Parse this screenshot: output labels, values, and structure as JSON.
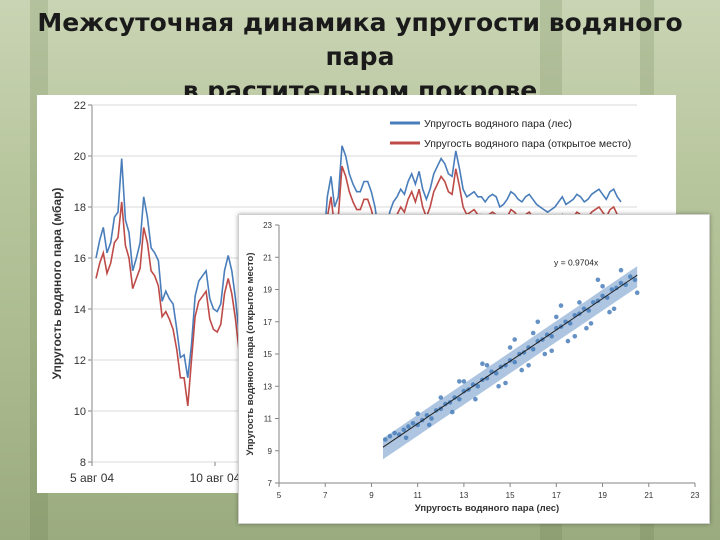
{
  "title_line1": "Межсуточная динамика упругости водяного пара",
  "title_line2": "в растительном покрове",
  "chart_data": [
    {
      "type": "line",
      "ylabel": "Упругость водяного пара (мбар)",
      "xlabel": "",
      "ylim": [
        8,
        22
      ],
      "yticks": [
        8,
        10,
        12,
        14,
        16,
        18,
        20,
        22
      ],
      "xticks": [
        "5 авг 04",
        "10 авг 04"
      ],
      "legend_position": "top-right",
      "grid": true,
      "colors": {
        "forest": "#4a7ebb",
        "open": "#be4b48"
      },
      "series": [
        {
          "name": "Упругость водяного пара (лес)",
          "values": [
            16.0,
            16.7,
            17.2,
            16.2,
            16.6,
            17.6,
            17.8,
            19.9,
            17.5,
            17.0,
            15.5,
            16.0,
            16.6,
            18.4,
            17.6,
            16.4,
            16.2,
            15.9,
            14.3,
            14.7,
            14.4,
            14.2,
            13.2,
            12.1,
            12.2,
            11.3,
            12.6,
            14.5,
            15.1,
            15.3,
            15.5,
            14.4,
            14.0,
            13.9,
            14.2,
            15.5,
            16.1,
            15.5,
            14.4,
            13.0,
            12.5,
            13.2,
            13.0,
            12.5,
            12.0,
            13.3,
            14.4,
            14.3,
            13.7,
            13.4,
            12.8,
            11.9,
            13.2,
            14.0,
            14.0,
            14.7,
            14.9,
            13.6,
            13.6,
            14.3,
            14.9,
            15.6,
            16.5,
            18.4,
            19.2,
            18.0,
            18.4,
            20.4,
            20.0,
            19.3,
            18.9,
            18.6,
            18.6,
            19.0,
            19.0,
            18.6,
            18.0,
            17.0,
            16.3,
            16.5,
            17.8,
            18.2,
            18.4,
            18.7,
            18.5,
            19.0,
            19.3,
            18.9,
            19.4,
            18.7,
            18.3,
            18.7,
            19.3,
            19.6,
            19.9,
            19.7,
            19.3,
            19.2,
            20.2,
            19.5,
            18.7,
            18.4,
            18.5,
            18.6,
            18.4,
            18.4,
            18.2,
            18.4,
            18.5,
            18.4,
            18.0,
            18.1,
            18.3,
            18.6,
            18.5,
            18.3,
            18.2,
            18.4,
            18.5,
            18.3,
            18.1,
            18.0,
            17.9,
            17.8,
            17.9,
            18.0,
            18.2,
            18.4,
            18.1,
            18.2,
            18.3,
            18.5,
            18.4,
            18.2,
            18.3,
            18.5,
            18.6,
            18.7,
            18.5,
            18.3,
            18.6,
            18.7,
            18.4,
            18.2
          ]
        },
        {
          "name": "Упругость водяного пара (открытое место)",
          "values": [
            15.2,
            15.8,
            16.2,
            15.4,
            15.8,
            16.6,
            16.8,
            18.2,
            16.5,
            16.0,
            14.8,
            15.2,
            15.6,
            17.2,
            16.6,
            15.5,
            15.3,
            14.9,
            13.7,
            13.9,
            13.6,
            13.2,
            12.4,
            11.3,
            11.3,
            10.2,
            12.0,
            13.7,
            14.3,
            14.5,
            14.7,
            13.6,
            13.2,
            13.1,
            13.4,
            14.6,
            15.2,
            14.6,
            13.6,
            12.3,
            11.9,
            12.5,
            12.3,
            11.8,
            11.4,
            12.6,
            13.7,
            13.6,
            13.0,
            12.7,
            12.1,
            11.3,
            12.5,
            13.3,
            13.3,
            13.9,
            14.1,
            12.9,
            12.9,
            13.6,
            14.2,
            14.9,
            15.7,
            17.6,
            18.4,
            17.2,
            17.6,
            19.6,
            19.2,
            18.6,
            18.2,
            17.9,
            17.9,
            18.3,
            18.3,
            17.9,
            17.3,
            16.4,
            15.7,
            15.9,
            17.1,
            17.5,
            17.7,
            18.0,
            17.8,
            18.3,
            18.6,
            18.2,
            18.7,
            18.0,
            17.6,
            18.0,
            18.6,
            18.9,
            19.2,
            19.0,
            18.6,
            18.5,
            19.5,
            18.8,
            18.0,
            17.7,
            17.8,
            17.9,
            17.7,
            17.7,
            17.5,
            17.7,
            17.8,
            17.7,
            17.3,
            17.4,
            17.6,
            17.9,
            17.8,
            17.6,
            17.5,
            17.7,
            17.8,
            17.6,
            17.4,
            17.3,
            17.2,
            17.1,
            17.2,
            17.3,
            17.5,
            17.7,
            17.4,
            17.5,
            17.6,
            17.8,
            17.7,
            17.5,
            17.6,
            17.8,
            17.9,
            18.0,
            17.8,
            17.6,
            17.9,
            18.0,
            17.7,
            17.5
          ]
        }
      ]
    },
    {
      "type": "scatter",
      "xlabel": "Упругость водяного пара (лес)",
      "ylabel": "Упругость водяного пара (открытое место)",
      "xlim": [
        5,
        23
      ],
      "ylim": [
        7,
        23
      ],
      "xticks": [
        5,
        7,
        9,
        11,
        13,
        15,
        17,
        19,
        21,
        23
      ],
      "yticks": [
        7,
        9,
        11,
        13,
        15,
        17,
        19,
        21,
        23
      ],
      "grid": false,
      "color": "#4a7ebb",
      "trendline": {
        "equation": "y = 0.9704x",
        "slope": 0.9704,
        "x_range": [
          9.5,
          20.5
        ]
      },
      "series": [
        {
          "points": [
            [
              9.6,
              9.7
            ],
            [
              9.8,
              9.9
            ],
            [
              10.0,
              10.1
            ],
            [
              10.2,
              10.0
            ],
            [
              10.4,
              10.3
            ],
            [
              10.6,
              10.5
            ],
            [
              10.8,
              10.7
            ],
            [
              11.0,
              10.6
            ],
            [
              11.2,
              10.9
            ],
            [
              11.4,
              11.2
            ],
            [
              11.6,
              11.0
            ],
            [
              11.8,
              11.5
            ],
            [
              12.0,
              11.6
            ],
            [
              12.2,
              11.9
            ],
            [
              12.4,
              12.0
            ],
            [
              12.6,
              12.3
            ],
            [
              12.8,
              12.2
            ],
            [
              13.0,
              12.7
            ],
            [
              13.2,
              12.8
            ],
            [
              13.4,
              13.1
            ],
            [
              13.6,
              13.0
            ],
            [
              13.8,
              13.4
            ],
            [
              14.0,
              13.5
            ],
            [
              14.2,
              13.9
            ],
            [
              14.4,
              13.8
            ],
            [
              14.6,
              14.2
            ],
            [
              14.8,
              14.3
            ],
            [
              15.0,
              14.6
            ],
            [
              15.2,
              14.5
            ],
            [
              15.4,
              15.0
            ],
            [
              15.6,
              15.1
            ],
            [
              15.8,
              15.4
            ],
            [
              16.0,
              15.3
            ],
            [
              16.2,
              15.8
            ],
            [
              16.4,
              15.9
            ],
            [
              16.6,
              16.2
            ],
            [
              16.8,
              16.1
            ],
            [
              17.0,
              16.6
            ],
            [
              17.2,
              16.7
            ],
            [
              17.4,
              17.0
            ],
            [
              17.6,
              16.9
            ],
            [
              17.8,
              17.4
            ],
            [
              18.0,
              17.5
            ],
            [
              18.2,
              17.8
            ],
            [
              18.4,
              17.7
            ],
            [
              18.6,
              18.2
            ],
            [
              18.8,
              18.3
            ],
            [
              19.0,
              18.6
            ],
            [
              19.2,
              18.5
            ],
            [
              19.4,
              19.0
            ],
            [
              19.6,
              19.1
            ],
            [
              19.8,
              19.4
            ],
            [
              20.0,
              19.3
            ],
            [
              20.2,
              19.8
            ],
            [
              20.4,
              19.6
            ],
            [
              11.0,
              11.3
            ],
            [
              12.0,
              12.3
            ],
            [
              13.0,
              13.3
            ],
            [
              14.0,
              14.3
            ],
            [
              15.0,
              15.4
            ],
            [
              16.0,
              16.3
            ],
            [
              17.0,
              17.3
            ],
            [
              18.0,
              18.2
            ],
            [
              19.0,
              19.2
            ],
            [
              13.5,
              12.2
            ],
            [
              14.5,
              13.0
            ],
            [
              15.5,
              14.0
            ],
            [
              16.5,
              15.0
            ],
            [
              17.5,
              15.8
            ],
            [
              18.5,
              16.9
            ],
            [
              19.5,
              17.8
            ],
            [
              12.5,
              11.4
            ],
            [
              10.5,
              9.8
            ],
            [
              11.5,
              10.6
            ],
            [
              20.5,
              18.8
            ],
            [
              17.2,
              18.0
            ],
            [
              16.2,
              17.0
            ],
            [
              15.2,
              15.9
            ],
            [
              19.8,
              20.2
            ],
            [
              18.8,
              19.6
            ],
            [
              13.8,
              14.4
            ],
            [
              12.8,
              13.3
            ],
            [
              16.8,
              15.2
            ],
            [
              17.8,
              16.1
            ],
            [
              18.3,
              16.6
            ],
            [
              19.3,
              17.6
            ],
            [
              14.8,
              13.2
            ],
            [
              15.8,
              14.3
            ]
          ]
        }
      ]
    }
  ]
}
